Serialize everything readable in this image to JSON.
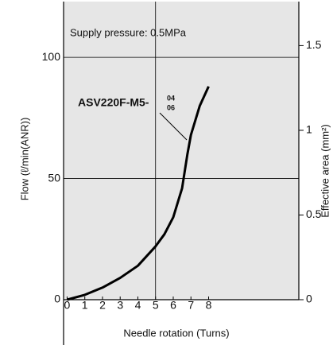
{
  "chart_data": {
    "type": "line",
    "annotation": {
      "text": "Supply pressure: 0.5MPa"
    },
    "label": {
      "text": "ASV220F-M5-",
      "upper": "04",
      "lower": "06"
    },
    "xlabel": "Needle rotation (Turns)",
    "ylabel": "Flow (ℓ/min(ANR))",
    "y2label": "Effective area (mm²)",
    "x": [
      0,
      1,
      2,
      3,
      4,
      5,
      5.5,
      6,
      6.5,
      6.8,
      7,
      7.5,
      8
    ],
    "series": [
      {
        "name": "ASV220F-M5",
        "color": "#000000",
        "values": [
          0,
          2,
          5,
          9,
          14,
          22,
          27,
          34,
          46,
          60,
          68,
          80,
          88
        ]
      }
    ],
    "xlim": [
      -0.2,
      13.1
    ],
    "xticks": [
      0,
      1,
      2,
      3,
      4,
      5,
      6,
      7,
      8
    ],
    "ylim": [
      0,
      123
    ],
    "yticks": [
      0,
      50,
      100
    ],
    "y2lim": [
      0,
      1.76
    ],
    "y2ticks": [
      0,
      0.5,
      1,
      1.5
    ],
    "grid": true
  }
}
